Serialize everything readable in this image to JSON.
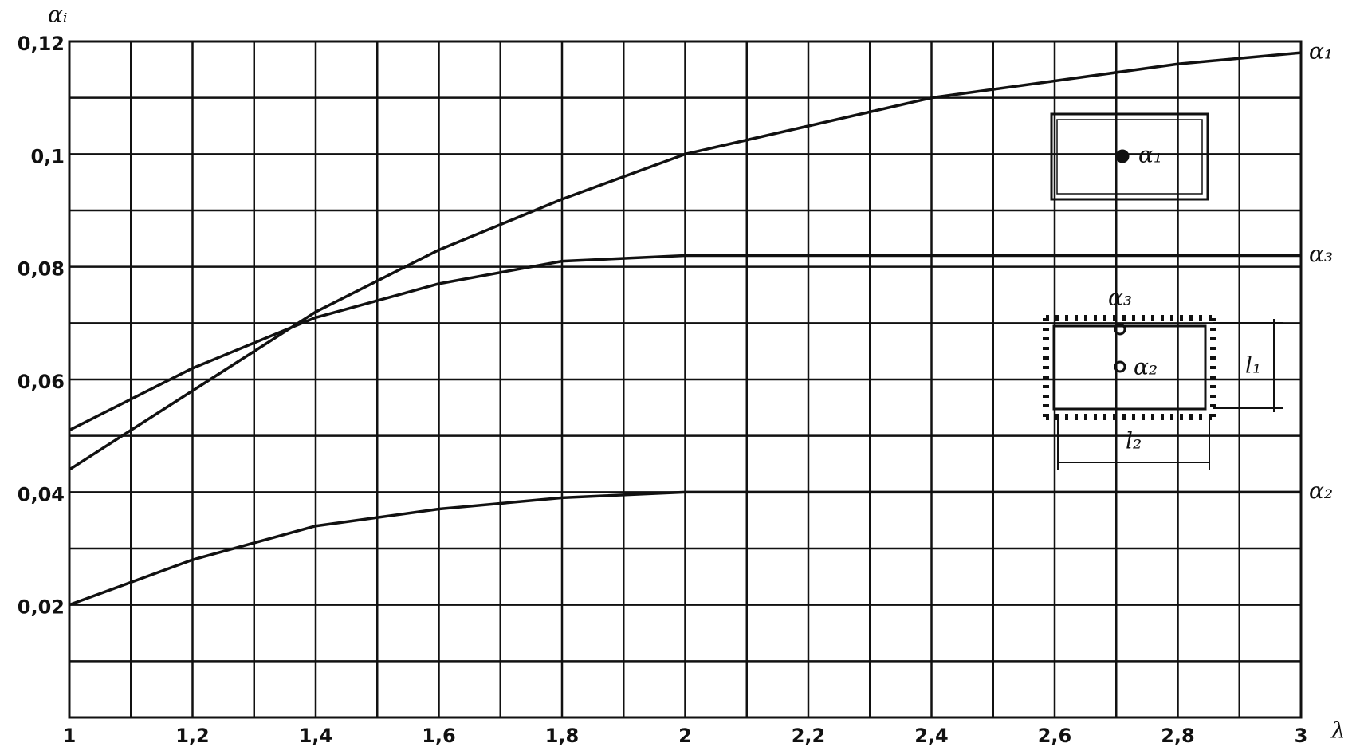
{
  "chart_data": {
    "type": "line",
    "y_label": "αᵢ",
    "x_label": "λ",
    "xlim": [
      1,
      3
    ],
    "ylim": [
      0,
      0.12
    ],
    "xticks": [
      {
        "value": 1,
        "label": "1"
      },
      {
        "value": 1.2,
        "label": "1,2"
      },
      {
        "value": 1.4,
        "label": "1,4"
      },
      {
        "value": 1.6,
        "label": "1,6"
      },
      {
        "value": 1.8,
        "label": "1,8"
      },
      {
        "value": 2,
        "label": "2"
      },
      {
        "value": 2.2,
        "label": "2,2"
      },
      {
        "value": 2.4,
        "label": "2,4"
      },
      {
        "value": 2.6,
        "label": "2,6"
      },
      {
        "value": 2.8,
        "label": "2,8"
      },
      {
        "value": 3,
        "label": "3"
      }
    ],
    "yticks": [
      {
        "value": 0.02,
        "label": "0,02"
      },
      {
        "value": 0.04,
        "label": "0,04"
      },
      {
        "value": 0.06,
        "label": "0,06"
      },
      {
        "value": 0.08,
        "label": "0,08"
      },
      {
        "value": 0.1,
        "label": "0,1"
      },
      {
        "value": 0.12,
        "label": "0,12"
      }
    ],
    "x_minor_ticks": [
      1.1,
      1.3,
      1.5,
      1.7,
      1.9,
      2.1,
      2.3,
      2.5,
      2.7,
      2.9
    ],
    "y_minor_ticks": [
      0.01,
      0.03,
      0.05,
      0.07,
      0.09,
      0.11
    ],
    "grid": true,
    "x": [
      1,
      1.2,
      1.4,
      1.6,
      1.8,
      2,
      2.2,
      2.4,
      2.6,
      2.8,
      3
    ],
    "series": [
      {
        "name": "α₁",
        "color": "#111111",
        "values": [
          0.044,
          0.058,
          0.072,
          0.083,
          0.092,
          0.1,
          0.105,
          0.11,
          0.113,
          0.116,
          0.118
        ]
      },
      {
        "name": "α₃",
        "color": "#111111",
        "values": [
          0.051,
          0.062,
          0.071,
          0.077,
          0.081,
          0.082,
          0.082,
          0.082,
          0.082,
          0.082,
          0.082
        ]
      },
      {
        "name": "α₂",
        "color": "#111111",
        "values": [
          0.02,
          0.028,
          0.034,
          0.037,
          0.039,
          0.04,
          0.04,
          0.04,
          0.04,
          0.04,
          0.04
        ]
      }
    ],
    "annotations": [
      "α₁",
      "α₃",
      "α₂",
      "l₁",
      "l₂"
    ]
  }
}
